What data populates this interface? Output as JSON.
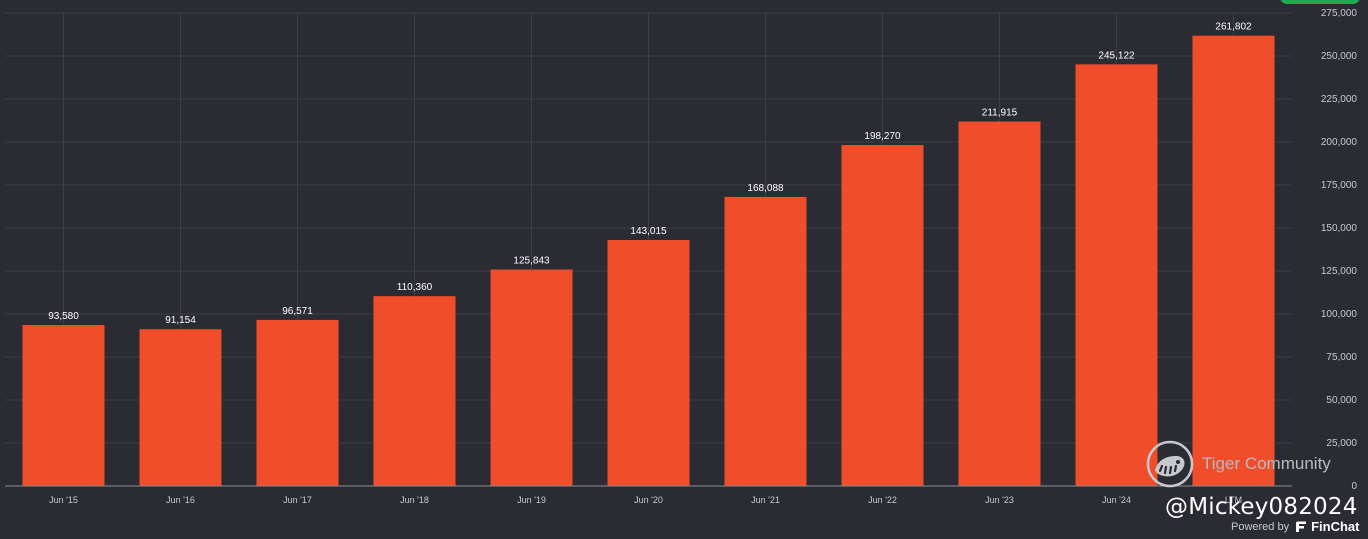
{
  "chart_data": {
    "type": "bar",
    "categories": [
      "Jun '15",
      "Jun '16",
      "Jun '17",
      "Jun '18",
      "Jun '19",
      "Jun '20",
      "Jun '21",
      "Jun '22",
      "Jun '23",
      "Jun '24",
      "LTM"
    ],
    "values": [
      93580,
      91154,
      96571,
      110360,
      125843,
      143015,
      168088,
      198270,
      211915,
      245122,
      261802
    ],
    "value_labels": [
      "93,580",
      "91,154",
      "96,571",
      "110,360",
      "125,843",
      "143,015",
      "168,088",
      "198,270",
      "211,915",
      "245,122",
      "261,802"
    ],
    "y_ticks": [
      "0",
      "25,000",
      "50,000",
      "75,000",
      "100,000",
      "125,000",
      "150,000",
      "175,000",
      "200,000",
      "225,000",
      "250,000",
      "275,000"
    ],
    "ylim": [
      0,
      275000
    ],
    "y_axis_side": "right",
    "grid": true,
    "bar_color": "#f04e2b",
    "background": "#2a2b33",
    "title": "",
    "xlabel": "",
    "ylabel": ""
  },
  "watermark": {
    "community_name": "Tiger Community",
    "handle": "@Mickey082024",
    "logo_icon": "tiger-community-logo-icon"
  },
  "footer": {
    "powered_by": "Powered by",
    "brand_name": "FinChat",
    "brand_icon": "finchat-logo-icon"
  },
  "colors": {
    "accent_green": "#22a94f"
  }
}
